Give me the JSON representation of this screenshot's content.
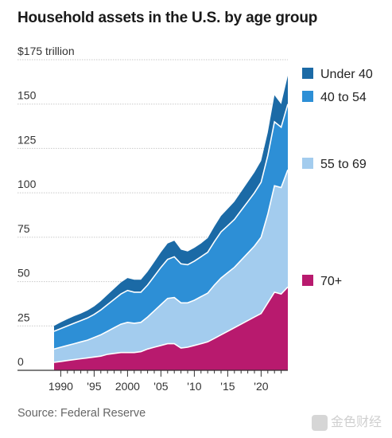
{
  "title": "Household assets in the U.S. by age group",
  "source": "Source: Federal Reserve",
  "watermark": "金色财经",
  "chart_data": {
    "type": "area",
    "stacked": true,
    "unit_label": "$175 trillion",
    "x_ticks": [
      "1990",
      "'95",
      "2000",
      "'05",
      "'10",
      "'15",
      "'20"
    ],
    "x_tick_years": [
      1990,
      1995,
      2000,
      2005,
      2010,
      2015,
      2020
    ],
    "y_ticks": [
      "150",
      "125",
      "100",
      "75",
      "50",
      "25",
      "0"
    ],
    "y_tick_values": [
      150,
      125,
      100,
      75,
      50,
      25,
      0
    ],
    "xlim": [
      1989,
      2024
    ],
    "ylim": [
      0,
      175
    ],
    "grid": "horizontal",
    "legend_placement": "right",
    "x": [
      1989,
      1990,
      1991,
      1992,
      1993,
      1994,
      1995,
      1996,
      1997,
      1998,
      1999,
      2000,
      2001,
      2002,
      2003,
      2004,
      2005,
      2006,
      2007,
      2008,
      2009,
      2010,
      2011,
      2012,
      2013,
      2014,
      2015,
      2016,
      2017,
      2018,
      2019,
      2020,
      2021,
      2022,
      2023,
      2024
    ],
    "series": [
      {
        "name": "70+",
        "color": "#b81a6e",
        "values": [
          4.5,
          5,
          5.5,
          6,
          6.5,
          7,
          7.5,
          8,
          9,
          9.5,
          10,
          10,
          10,
          10.5,
          12,
          13,
          14,
          15,
          15,
          12.5,
          13,
          14,
          15,
          16,
          18,
          20,
          22,
          24,
          26,
          28,
          30,
          32,
          38,
          44,
          43,
          47
        ]
      },
      {
        "name": "55 to 69",
        "color": "#a3ccee",
        "values": [
          7.5,
          8,
          8.5,
          9,
          9.5,
          10,
          11,
          12,
          13,
          14.5,
          16,
          17,
          16.5,
          16.5,
          18,
          20.5,
          23,
          25.5,
          26,
          25.5,
          25,
          25.5,
          26.5,
          27.5,
          30,
          32,
          33,
          34,
          36,
          38,
          40,
          43,
          50,
          60,
          60,
          66
        ]
      },
      {
        "name": "40 to 54",
        "color": "#2d8fd6",
        "values": [
          10,
          10.5,
          11,
          11.5,
          12,
          12.5,
          13,
          14,
          15,
          16,
          17,
          18,
          17.5,
          17,
          18,
          19.5,
          21,
          22,
          23,
          22,
          21.5,
          22,
          22.5,
          23,
          24.5,
          26,
          26.5,
          27,
          28,
          29,
          30,
          31,
          33,
          36,
          34,
          37
        ]
      },
      {
        "name": "Under 40",
        "color": "#1b6aa6",
        "values": [
          3,
          3.5,
          3.8,
          4,
          4,
          4.2,
          4.5,
          5,
          5.5,
          6,
          6.5,
          7,
          7,
          7,
          7.5,
          8,
          8.5,
          9,
          9,
          8,
          7.5,
          7.5,
          7.5,
          8,
          8.5,
          9,
          9.5,
          10,
          10.5,
          11,
          11.5,
          12,
          13,
          15,
          13,
          16
        ]
      }
    ]
  }
}
